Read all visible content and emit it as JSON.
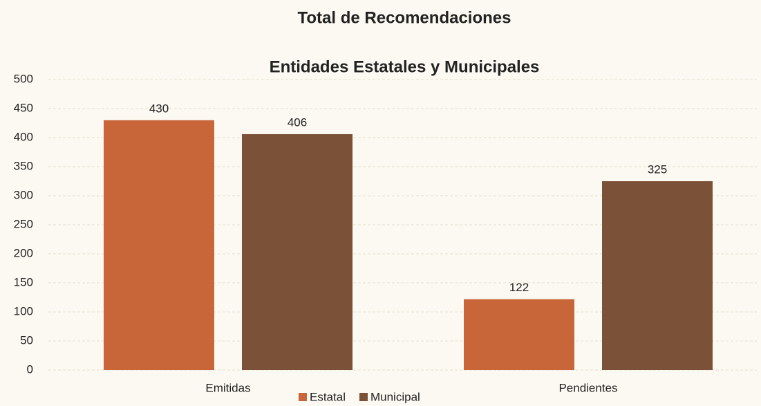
{
  "chart_data": {
    "type": "bar",
    "title": "Total de Recomendaciones",
    "subtitle": "Entidades Estatales y Municipales",
    "categories": [
      "Emitidas",
      "Pendientes"
    ],
    "series": [
      {
        "name": "Estatal",
        "color": "#c8663a",
        "values": [
          430,
          122
        ]
      },
      {
        "name": "Municipal",
        "color": "#7b5138",
        "values": [
          406,
          325
        ]
      }
    ],
    "ylim": [
      0,
      500
    ],
    "yticks": [
      0,
      50,
      100,
      150,
      200,
      250,
      300,
      350,
      400,
      450,
      500
    ],
    "grid": true,
    "legend": "bottom"
  }
}
